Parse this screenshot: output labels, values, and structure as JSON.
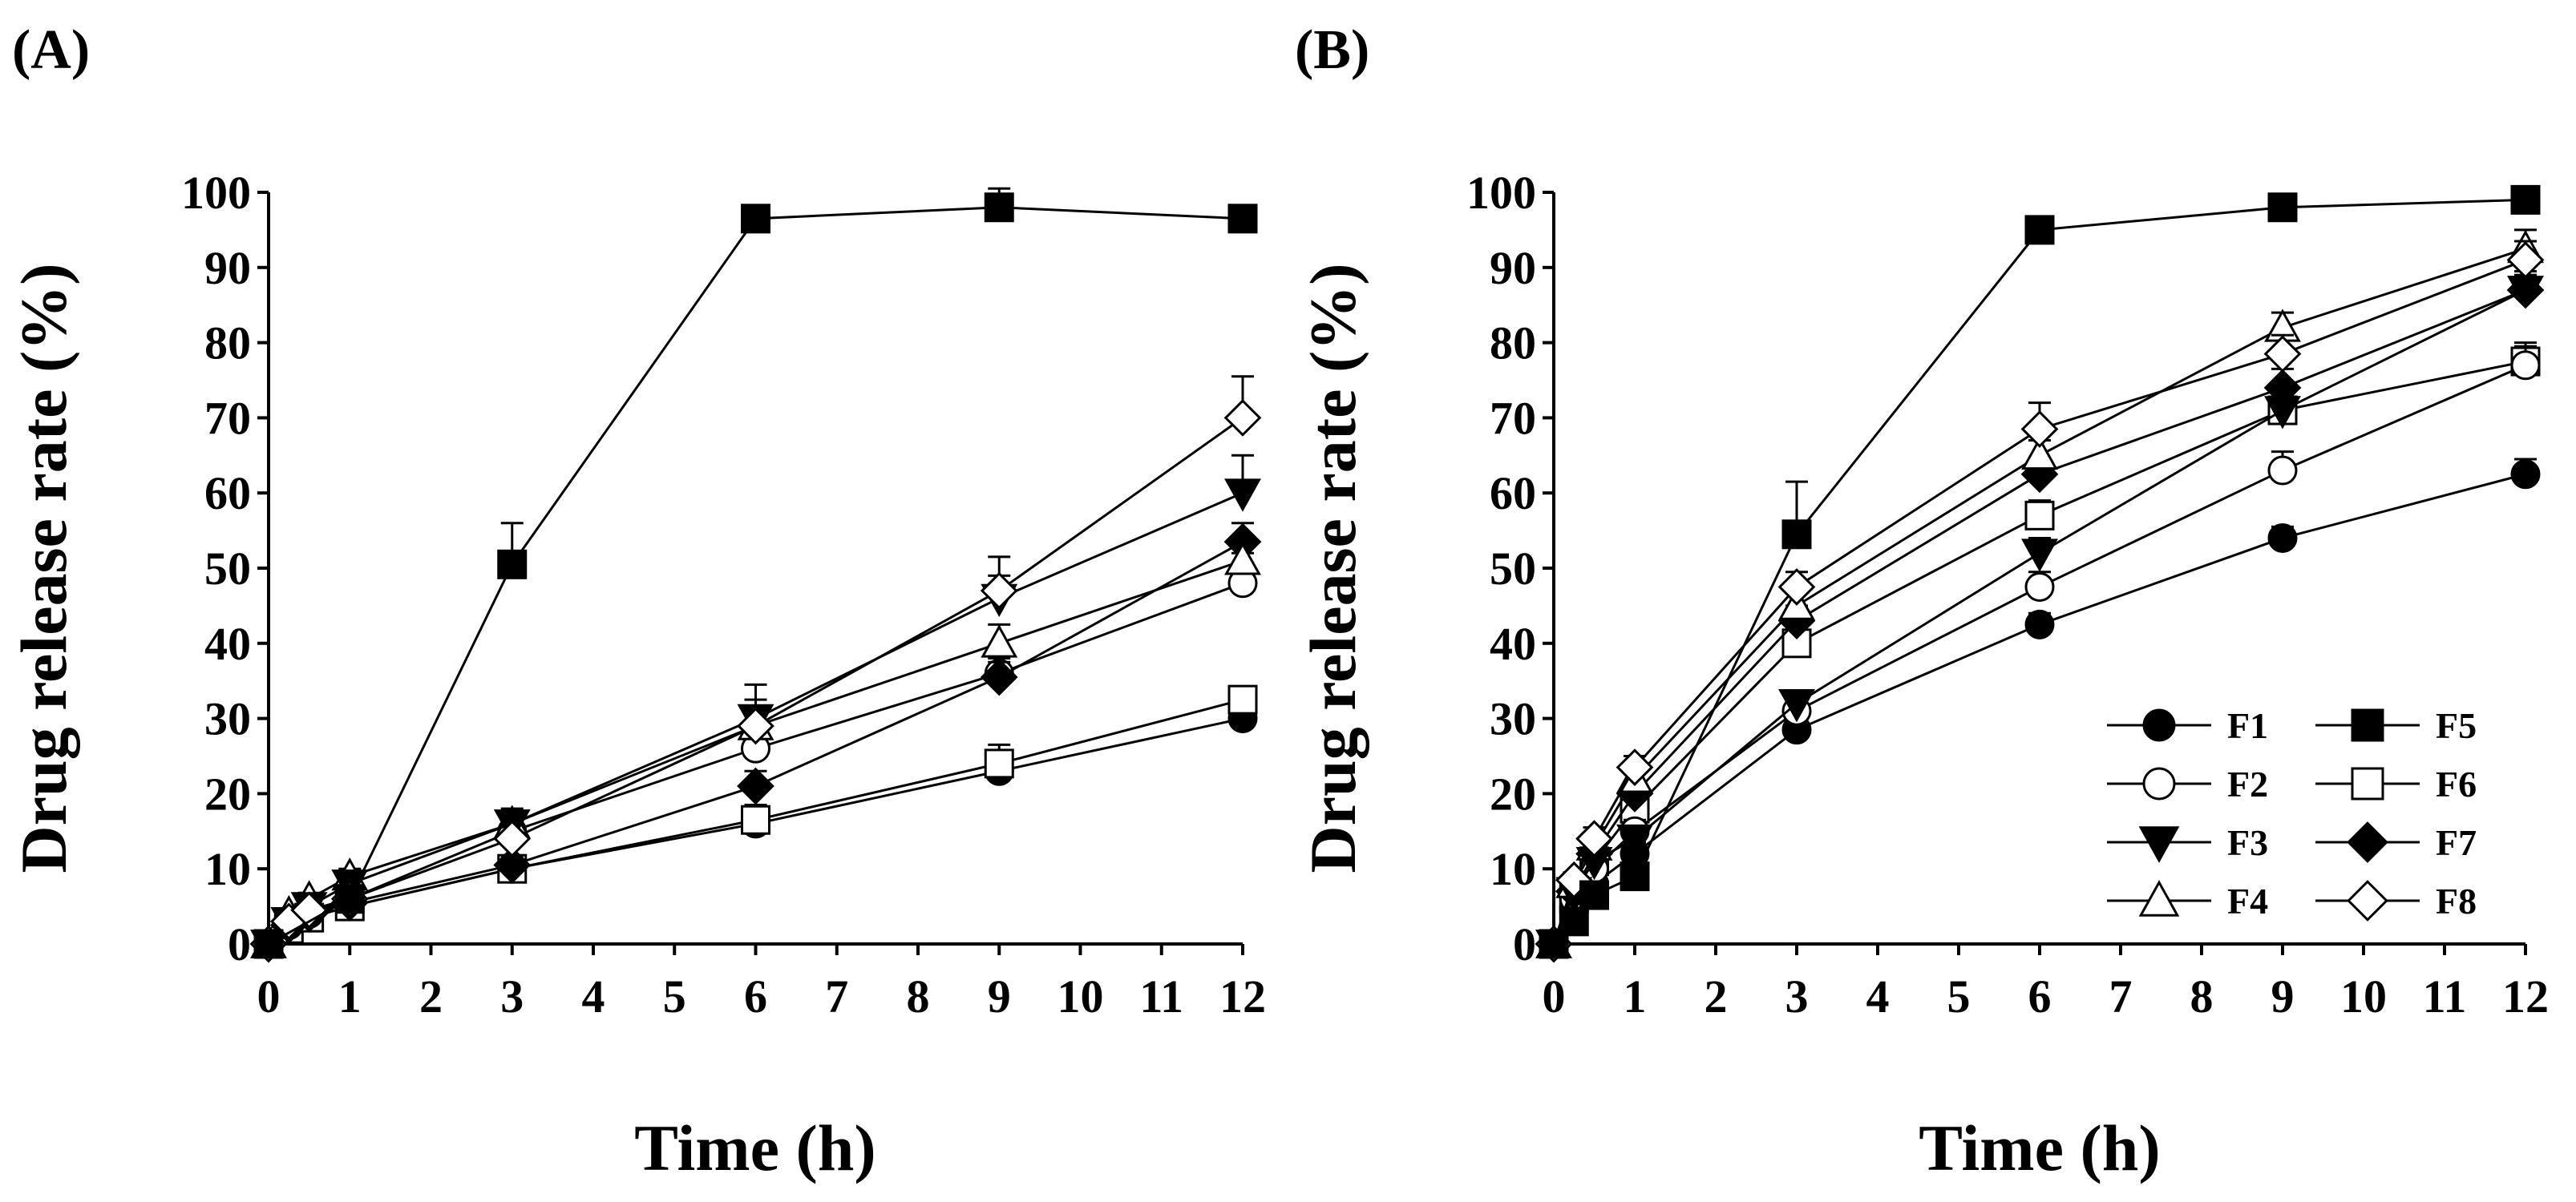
{
  "chart_data": [
    {
      "panel_label": "(A)",
      "type": "line",
      "xlabel": "Time (h)",
      "ylabel": "Drug release rate (%)",
      "xlim": [
        0,
        12
      ],
      "ylim": [
        0,
        100
      ],
      "xticks": [
        "0",
        "1",
        "2",
        "3",
        "4",
        "5",
        "6",
        "7",
        "8",
        "9",
        "10",
        "11",
        "12"
      ],
      "yticks": [
        "0",
        "10",
        "20",
        "30",
        "40",
        "50",
        "60",
        "70",
        "80",
        "90",
        "100"
      ],
      "legend": false,
      "series": [
        {
          "name": "F1",
          "marker": "circle",
          "fill": "black",
          "x": [
            0,
            0.25,
            0.5,
            1,
            3,
            6,
            9,
            12
          ],
          "y": [
            0,
            2,
            3.5,
            5,
            10,
            16,
            23,
            30
          ],
          "err": [
            0,
            0.5,
            0.5,
            0.8,
            1,
            1.2,
            1.5,
            1.5
          ]
        },
        {
          "name": "F2",
          "marker": "circle",
          "fill": "white",
          "x": [
            0,
            0.25,
            0.5,
            1,
            3,
            6,
            9,
            12
          ],
          "y": [
            0,
            2.5,
            4,
            6,
            15,
            26,
            36,
            48
          ],
          "err": [
            0,
            0.5,
            0.5,
            0.8,
            1.5,
            2.5,
            2,
            4
          ]
        },
        {
          "name": "F3",
          "marker": "triangle-down",
          "fill": "black",
          "x": [
            0,
            0.25,
            0.5,
            1,
            3,
            6,
            9,
            12
          ],
          "y": [
            0,
            3,
            5,
            8,
            16,
            30,
            46,
            60
          ],
          "err": [
            0,
            0.5,
            0.8,
            1,
            2,
            2.5,
            3,
            5
          ]
        },
        {
          "name": "F4",
          "marker": "triangle-up",
          "fill": "white",
          "x": [
            0,
            0.25,
            0.5,
            1,
            3,
            6,
            9,
            12
          ],
          "y": [
            0,
            4,
            6,
            9,
            16,
            29,
            40,
            51
          ],
          "err": [
            0,
            0.5,
            0.8,
            1,
            1.5,
            2.5,
            2.5,
            3
          ]
        },
        {
          "name": "F5",
          "marker": "square",
          "fill": "black",
          "x": [
            0,
            1,
            3,
            6,
            9,
            12
          ],
          "y": [
            0,
            6,
            50.5,
            96.5,
            98,
            96.5
          ],
          "err": [
            0,
            1,
            5.5,
            1.2,
            2.5,
            1.2
          ]
        },
        {
          "name": "F6",
          "marker": "square",
          "fill": "white",
          "x": [
            0,
            0.25,
            0.5,
            1,
            3,
            6,
            9,
            12
          ],
          "y": [
            0,
            2,
            3.5,
            5,
            10,
            16.5,
            24,
            32.5
          ],
          "err": [
            0,
            0.5,
            0.5,
            0.8,
            1,
            2,
            2.5,
            1.5
          ]
        },
        {
          "name": "F7",
          "marker": "diamond",
          "fill": "black",
          "x": [
            0,
            0.25,
            0.5,
            1,
            3,
            6,
            9,
            12
          ],
          "y": [
            0,
            2.5,
            4,
            5.5,
            10.5,
            21,
            35.5,
            53.5
          ],
          "err": [
            0,
            0.5,
            0.5,
            0.8,
            1,
            2,
            2,
            2.5
          ]
        },
        {
          "name": "F8",
          "marker": "diamond",
          "fill": "white",
          "x": [
            0,
            0.25,
            0.5,
            1,
            3,
            6,
            9,
            12
          ],
          "y": [
            0,
            3,
            4.5,
            6,
            14,
            29,
            47,
            70
          ],
          "err": [
            0,
            0.5,
            0.8,
            1,
            2,
            5.5,
            4.5,
            5.5
          ]
        }
      ]
    },
    {
      "panel_label": "(B)",
      "type": "line",
      "xlabel": "Time (h)",
      "ylabel": "Drug release rate (%)",
      "xlim": [
        0,
        12
      ],
      "ylim": [
        0,
        100
      ],
      "xticks": [
        "0",
        "1",
        "2",
        "3",
        "4",
        "5",
        "6",
        "7",
        "8",
        "9",
        "10",
        "11",
        "12"
      ],
      "yticks": [
        "0",
        "10",
        "20",
        "30",
        "40",
        "50",
        "60",
        "70",
        "80",
        "90",
        "100"
      ],
      "legend": true,
      "legend_position": "bottom-right",
      "series": [
        {
          "name": "F1",
          "marker": "circle",
          "fill": "black",
          "x": [
            0,
            0.25,
            0.5,
            1,
            3,
            6,
            9,
            12
          ],
          "y": [
            0,
            5,
            8,
            12,
            28.5,
            42.5,
            54,
            62.5
          ],
          "err": [
            0,
            0.8,
            1,
            1.5,
            1.5,
            1.5,
            1.5,
            2
          ]
        },
        {
          "name": "F2",
          "marker": "circle",
          "fill": "white",
          "x": [
            0,
            0.25,
            0.5,
            1,
            3,
            6,
            9,
            12
          ],
          "y": [
            0,
            6,
            10,
            15,
            31,
            47.5,
            63,
            77
          ],
          "err": [
            0,
            1,
            1,
            1.5,
            1.5,
            2,
            2.5,
            2.5
          ]
        },
        {
          "name": "F3",
          "marker": "triangle-down",
          "fill": "black",
          "x": [
            0,
            0.25,
            0.5,
            1,
            3,
            6,
            9,
            12
          ],
          "y": [
            0,
            7,
            11,
            14,
            32,
            52,
            71,
            87
          ],
          "err": [
            0,
            1,
            1,
            1.5,
            1.5,
            2,
            2.5,
            2
          ]
        },
        {
          "name": "F4",
          "marker": "triangle-up",
          "fill": "white",
          "x": [
            0,
            0.25,
            0.5,
            1,
            3,
            6,
            9,
            12
          ],
          "y": [
            0,
            8,
            13,
            22,
            45,
            65,
            82,
            92.5
          ],
          "err": [
            0,
            1,
            1,
            1.5,
            2,
            2,
            2,
            2.5
          ]
        },
        {
          "name": "F5",
          "marker": "square",
          "fill": "black",
          "x": [
            0,
            0.25,
            0.5,
            1,
            3,
            6,
            9,
            12
          ],
          "y": [
            0,
            3,
            6.5,
            9,
            54.5,
            95,
            98,
            99
          ],
          "err": [
            0,
            0.8,
            1,
            3,
            7,
            0.8,
            0.8,
            0.8
          ]
        },
        {
          "name": "F6",
          "marker": "square",
          "fill": "white",
          "x": [
            0,
            0.25,
            0.5,
            1,
            3,
            6,
            9,
            12
          ],
          "y": [
            0,
            6,
            11,
            18,
            40,
            57,
            71,
            77.5
          ],
          "err": [
            0,
            1,
            1,
            2,
            2,
            2,
            2.5,
            2.5
          ]
        },
        {
          "name": "F7",
          "marker": "diamond",
          "fill": "black",
          "x": [
            0,
            0.25,
            0.5,
            1,
            3,
            6,
            9,
            12
          ],
          "y": [
            0,
            7,
            12,
            20,
            43,
            62.5,
            74,
            87
          ],
          "err": [
            0,
            1,
            1,
            1.5,
            2,
            2,
            2.5,
            2.5
          ]
        },
        {
          "name": "F8",
          "marker": "diamond",
          "fill": "white",
          "x": [
            0,
            0.25,
            0.5,
            1,
            3,
            6,
            9,
            12
          ],
          "y": [
            0,
            8.5,
            14,
            23.5,
            47.5,
            68.5,
            78.5,
            91
          ],
          "err": [
            0,
            1,
            1.5,
            1.5,
            2,
            3.5,
            2.5,
            2.5
          ]
        }
      ]
    }
  ]
}
